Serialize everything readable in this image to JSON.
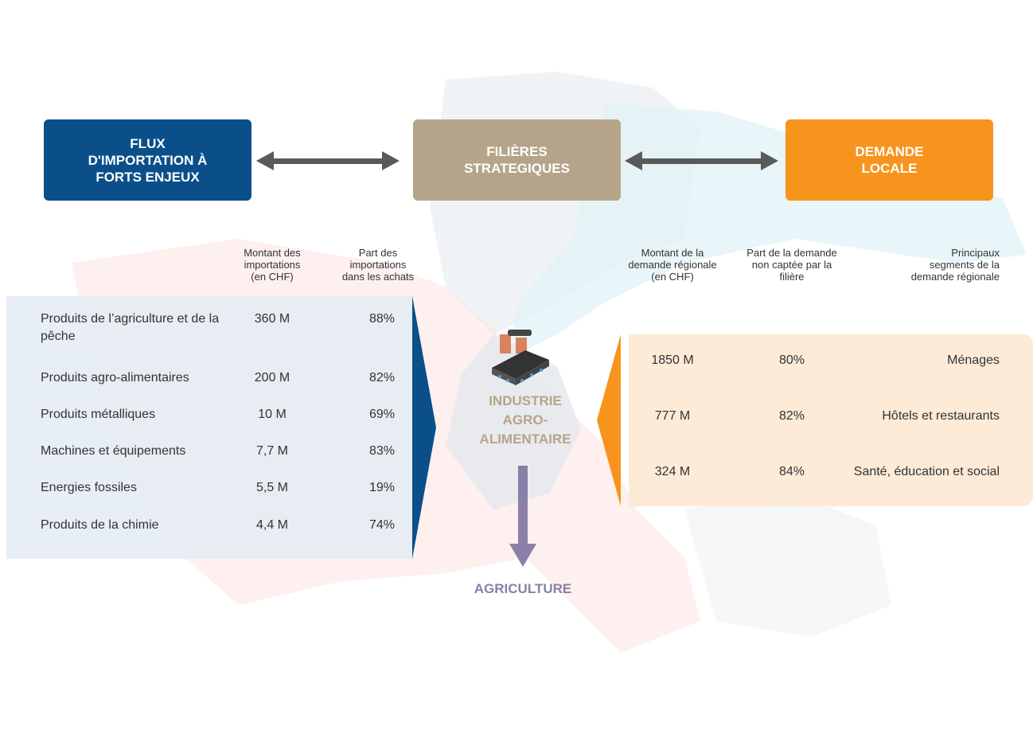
{
  "boxes": {
    "left": {
      "lines": [
        "FLUX",
        "D'IMPORTATION À",
        "FORTS ENJEUX"
      ]
    },
    "center": {
      "lines": [
        "FILIÈRES",
        "STRATEGIQUES"
      ]
    },
    "right": {
      "lines": [
        "DEMANDE",
        "LOCALE"
      ]
    }
  },
  "imports": {
    "headers": [
      [
        "Montant des",
        "importations",
        "(en CHF)"
      ],
      [
        "Part des",
        "importations",
        "dans les achats"
      ]
    ],
    "rows": [
      [
        "Produits de l’agriculture et de la pêche",
        "360 M",
        "88%"
      ],
      [
        "Produits agro-alimentaires",
        "200 M",
        "82%"
      ],
      [
        "Produits métalliques",
        "10 M",
        "69%"
      ],
      [
        "Machines et équipements",
        "7,7 M",
        "83%"
      ],
      [
        "Energies fossiles",
        "5,5 M",
        "19%"
      ],
      [
        "Produits de la chimie",
        "4,4 M",
        "74%"
      ]
    ]
  },
  "center": {
    "lines": [
      "INDUSTRIE",
      "AGRO-",
      "ALIMENTAIRE"
    ],
    "bottom": "AGRICULTURE"
  },
  "demand": {
    "headers": [
      [
        "Montant de la",
        "demande régionale",
        "(en CHF)"
      ],
      [
        "Part de la demande",
        "non captée par la",
        "filière"
      ],
      [
        "Principaux",
        "segments de la",
        "demande régionale"
      ]
    ],
    "rows": [
      [
        "1850 M",
        "80%",
        "Ménages"
      ],
      [
        "777 M",
        "82%",
        "Hôtels et restaurants"
      ],
      [
        "324 M",
        "84%",
        "Santé, éducation et social"
      ]
    ]
  }
}
